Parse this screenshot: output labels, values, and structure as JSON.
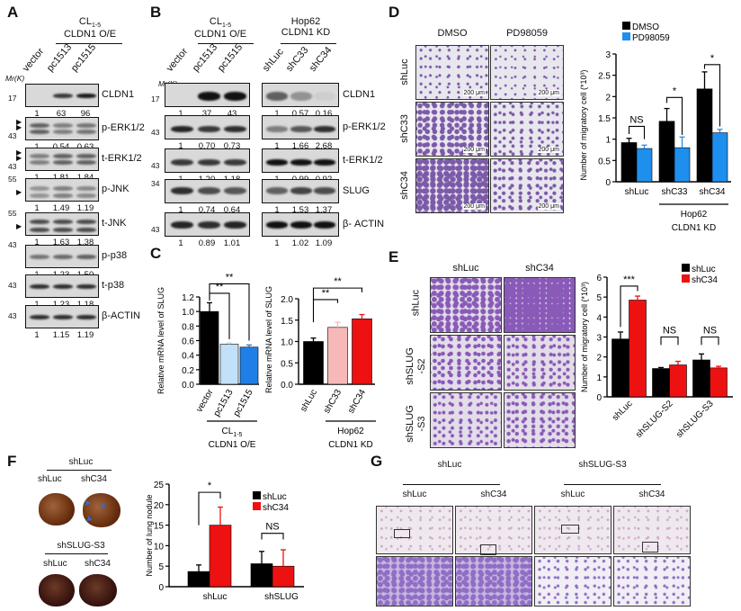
{
  "panels": {
    "A": {
      "letter": "A",
      "header": {
        "line1": "CL",
        "sub": "1-5",
        "line2": "CLDN1 O/E"
      },
      "mr_label": "Mr(K)",
      "lanes": [
        "vector",
        "pc1513",
        "pc1515"
      ],
      "rows": [
        {
          "label": "CLDN1",
          "quant": [
            "1",
            "63",
            "96"
          ],
          "markers": [
            "17"
          ]
        },
        {
          "label": "p-ERK1/2",
          "quant": [
            "1",
            "0.54",
            "0.63"
          ],
          "markers": [
            "43"
          ]
        },
        {
          "label": "t-ERK1/2",
          "quant": [
            "1",
            "1.81",
            "1.84"
          ],
          "markers": [
            "43"
          ]
        },
        {
          "label": "p-JNK",
          "quant": [
            "1",
            "1.49",
            "1.19"
          ],
          "markers": [
            "55"
          ]
        },
        {
          "label": "t-JNK",
          "quant": [
            "1",
            "1.63",
            "1.38"
          ],
          "markers": [
            "55"
          ]
        },
        {
          "label": "p-p38",
          "quant": [
            "1",
            "1.23",
            "1.50"
          ],
          "markers": [
            "43"
          ]
        },
        {
          "label": "t-p38",
          "quant": [
            "1",
            "1.23",
            "1.18"
          ],
          "markers": [
            "43"
          ]
        },
        {
          "label": "β-ACTIN",
          "quant": [
            "1",
            "1.15",
            "1.19"
          ],
          "markers": [
            "43"
          ]
        }
      ]
    },
    "B": {
      "letter": "B",
      "left_header": {
        "line1": "CL",
        "sub": "1-5",
        "line2": "CLDN1 O/E"
      },
      "right_header": {
        "line1": "Hop62",
        "line2": "CLDN1 KD"
      },
      "mr_label": "Mr(K)",
      "left_lanes": [
        "vector",
        "pc1513",
        "pc1515"
      ],
      "right_lanes": [
        "shLuc",
        "shC33",
        "shC34"
      ],
      "rows": [
        {
          "label": "CLDN1",
          "left_quant": [
            "1",
            "37",
            "43"
          ],
          "right_quant": [
            "1",
            "0.57",
            "0.16"
          ],
          "markers": [
            "17"
          ]
        },
        {
          "label": "p-ERK1/2",
          "left_quant": [
            "1",
            "0.70",
            "0.73"
          ],
          "right_quant": [
            "1",
            "1.66",
            "2.68"
          ],
          "markers": [
            "43"
          ]
        },
        {
          "label": "t-ERK1/2",
          "left_quant": [
            "1",
            "1.20",
            "1.18"
          ],
          "right_quant": [
            "1",
            "0.99",
            "0.92"
          ],
          "markers": [
            "43"
          ]
        },
        {
          "label": "SLUG",
          "left_quant": [
            "1",
            "0.74",
            "0.64"
          ],
          "right_quant": [
            "1",
            "1.53",
            "1.37"
          ],
          "markers": [
            "34"
          ]
        },
        {
          "label": "β- ACTIN",
          "left_quant": [
            "1",
            "0.89",
            "1.01"
          ],
          "right_quant": [
            "1",
            "1.02",
            "1.09"
          ],
          "markers": [
            "43"
          ]
        }
      ]
    },
    "C": {
      "letter": "C"
    },
    "D": {
      "letter": "D",
      "columns": [
        "DMSO",
        "PD98059"
      ],
      "rows": [
        "shLuc",
        "shC33",
        "shC34"
      ],
      "scale_bar": "200 μm"
    },
    "E": {
      "letter": "E",
      "columns": [
        "shLuc",
        "shC34"
      ],
      "rows": [
        [
          "shLuc"
        ],
        [
          "shSLUG",
          "-S2"
        ],
        [
          "shSLUG",
          "-S3"
        ]
      ]
    },
    "F": {
      "letter": "F",
      "top_group": "shLuc",
      "top_sub": [
        "shLuc",
        "shC34"
      ],
      "bottom_group": "shSLUG-S3",
      "bottom_sub": [
        "shLuc",
        "shC34"
      ]
    },
    "G": {
      "letter": "G",
      "groups": [
        "shLuc",
        "shSLUG-S3"
      ],
      "sub": [
        "shLuc",
        "shC34",
        "shLuc",
        "shC34"
      ]
    }
  },
  "chart_data": [
    {
      "panel": "C-left",
      "type": "bar",
      "categories": [
        "vector",
        "pc1513",
        "pc1515"
      ],
      "series": [
        {
          "name": "SLUG mRNA",
          "values": [
            1.0,
            0.55,
            0.51
          ],
          "errors": [
            0.12,
            0.02,
            0.03
          ],
          "colors": [
            "#000000",
            "#c2e0f7",
            "#1f7fe6"
          ]
        }
      ],
      "ylabel": "Relative mRNA level of SLUG",
      "ylim": [
        0,
        1.2
      ],
      "yticks": [
        0,
        0.2,
        0.4,
        0.6,
        0.8,
        1.0,
        1.2
      ],
      "ytick_labels": [
        "0.0",
        "0.2",
        "0.4",
        "0.6",
        "0.8",
        "1.0",
        "1.2"
      ],
      "significance": [
        {
          "a": [
            0,
            0
          ],
          "b": [
            1,
            0
          ],
          "label": "**",
          "level": 1.25,
          "ends": [
            1.15,
            0.62
          ]
        },
        {
          "a": [
            0,
            0
          ],
          "b": [
            2,
            0
          ],
          "label": "**",
          "level": 1.38,
          "ends": [
            1.25,
            0.6
          ]
        }
      ],
      "group_label": {
        "line1": "CL",
        "sub": "1-5",
        "line2": "CLDN1 O/E"
      }
    },
    {
      "panel": "C-right",
      "type": "bar",
      "categories": [
        "shLuc",
        "shC33",
        "shC34"
      ],
      "series": [
        {
          "name": "SLUG mRNA",
          "values": [
            1.0,
            1.33,
            1.53
          ],
          "errors": [
            0.08,
            0.12,
            0.1
          ],
          "colors": [
            "#000000",
            "#f7b8b8",
            "#ee1111"
          ]
        }
      ],
      "ylabel": "Relative mRNA level of SLUG",
      "ylim": [
        0,
        2.0
      ],
      "yticks": [
        0,
        0.5,
        1.0,
        1.5,
        2.0
      ],
      "ytick_labels": [
        "0.0",
        "0.5",
        "1.0",
        "1.5",
        "2.0"
      ],
      "significance": [
        {
          "a": [
            0,
            0
          ],
          "b": [
            1,
            0
          ],
          "label": "**",
          "level": 1.98,
          "ends": [
            1.45,
            1.9
          ]
        },
        {
          "a": [
            0,
            0
          ],
          "b": [
            2,
            0
          ],
          "label": "**",
          "level": 2.25,
          "ends": [
            1.98,
            2.15
          ]
        }
      ],
      "group_label": {
        "line1": "Hop62",
        "line2": "CLDN1 KD"
      }
    },
    {
      "panel": "D",
      "type": "bar",
      "categories": [
        "shLuc",
        "shC33",
        "shC34"
      ],
      "series": [
        {
          "name": "DMSO",
          "values": [
            0.92,
            1.42,
            2.18
          ],
          "errors": [
            0.1,
            0.3,
            0.4
          ],
          "color": "#000000"
        },
        {
          "name": "PD98059",
          "values": [
            0.78,
            0.8,
            1.15
          ],
          "errors": [
            0.08,
            0.25,
            0.08
          ],
          "color": "#1f8fee"
        }
      ],
      "ylabel": "Number of migratory cell (*10³)",
      "ylim": [
        0,
        3
      ],
      "yticks": [
        0,
        0.5,
        1,
        1.5,
        2,
        2.5,
        3
      ],
      "ytick_labels": [
        "0",
        "0.5",
        "1",
        "1.5",
        "2",
        "2.5",
        "3"
      ],
      "significance": [
        {
          "a": [
            0,
            0
          ],
          "b": [
            0,
            1
          ],
          "label": "NS",
          "level": 1.3,
          "ends": [
            1.12,
            1.0
          ]
        },
        {
          "a": [
            1,
            0
          ],
          "b": [
            1,
            1
          ],
          "label": "*",
          "level": 1.98,
          "ends": [
            1.85,
            1.1
          ]
        },
        {
          "a": [
            2,
            0
          ],
          "b": [
            2,
            1
          ],
          "label": "*",
          "level": 2.75,
          "ends": [
            2.65,
            1.3
          ]
        }
      ],
      "legend_position": "top-left",
      "group_label": {
        "line1": "Hop62",
        "line2": "CLDN1 KD"
      }
    },
    {
      "panel": "E",
      "type": "bar",
      "categories": [
        "shLuc",
        "shSLUG-S2",
        "shSLUG-S3"
      ],
      "series": [
        {
          "name": "shLuc",
          "values": [
            2.9,
            1.42,
            1.85
          ],
          "errors": [
            0.35,
            0.05,
            0.3
          ],
          "color": "#000000"
        },
        {
          "name": "shC34",
          "values": [
            4.85,
            1.6,
            1.45
          ],
          "errors": [
            0.2,
            0.18,
            0.08
          ],
          "color": "#ee1111"
        }
      ],
      "ylabel": "Number of migratory cell (*10³)",
      "ylim": [
        0,
        6
      ],
      "yticks": [
        0,
        1,
        2,
        3,
        4,
        5,
        6
      ],
      "ytick_labels": [
        "0",
        "1",
        "2",
        "3",
        "4",
        "5",
        "6"
      ],
      "significance": [
        {
          "a": [
            0,
            0
          ],
          "b": [
            0,
            1
          ],
          "label": "***",
          "level": 5.55,
          "ends": [
            3.5,
            5.3
          ]
        },
        {
          "a": [
            1,
            0
          ],
          "b": [
            1,
            1
          ],
          "label": "NS",
          "level": 3.0,
          "ends": [
            2.6,
            2.6
          ]
        },
        {
          "a": [
            2,
            0
          ],
          "b": [
            2,
            1
          ],
          "label": "NS",
          "level": 3.0,
          "ends": [
            2.6,
            2.6
          ]
        }
      ],
      "legend_position": "top-right"
    },
    {
      "panel": "F",
      "type": "bar",
      "categories": [
        "shLuc",
        "shSLUG"
      ],
      "series": [
        {
          "name": "shLuc",
          "values": [
            3.7,
            5.6
          ],
          "errors": [
            1.6,
            3.0
          ],
          "color": "#000000"
        },
        {
          "name": "shC34",
          "values": [
            15.0,
            5.0
          ],
          "errors": [
            4.4,
            4.0
          ],
          "color": "#ee1111"
        }
      ],
      "ylabel": "Number of lung nodule",
      "ylim": [
        0,
        25
      ],
      "yticks": [
        0,
        5,
        10,
        15,
        20,
        25
      ],
      "ytick_labels": [
        "0",
        "5",
        "10",
        "15",
        "20",
        "25"
      ],
      "significance": [
        {
          "a": [
            0,
            0
          ],
          "b": [
            0,
            1
          ],
          "label": "*",
          "level": 23,
          "ends": [
            15,
            21.5
          ]
        },
        {
          "a": [
            1,
            0
          ],
          "b": [
            1,
            1
          ],
          "label": "NS",
          "level": 13,
          "ends": [
            11.5,
            11.5
          ]
        }
      ],
      "legend_position": "top-right"
    }
  ]
}
